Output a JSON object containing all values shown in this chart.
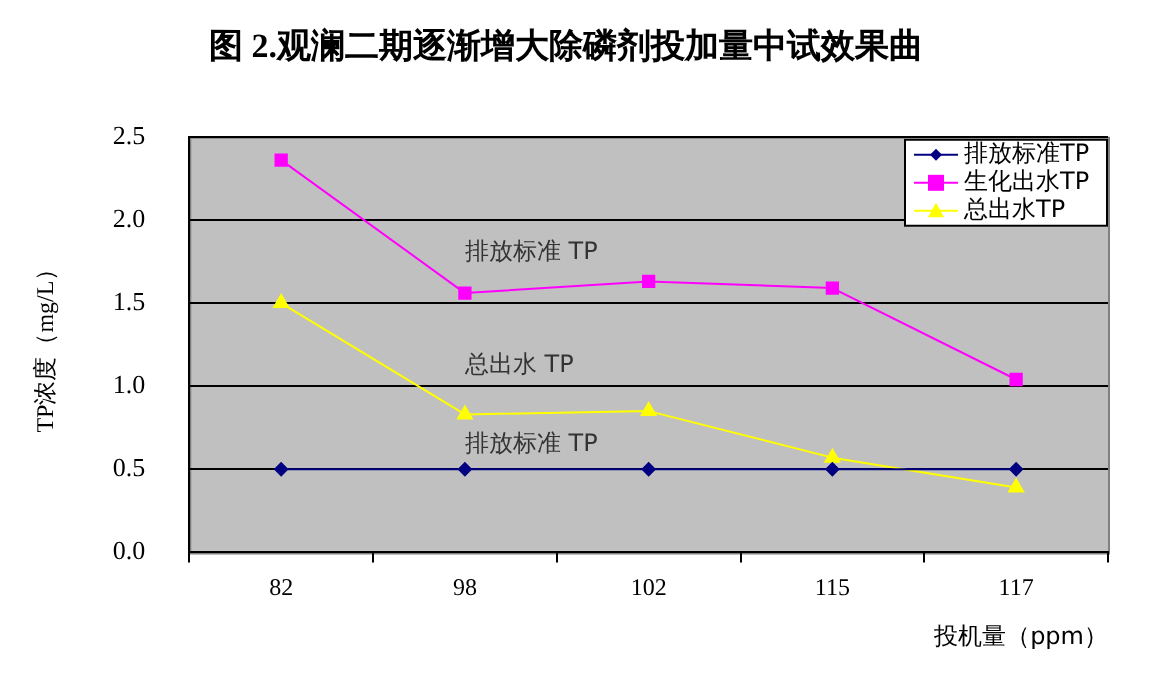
{
  "chart_data": {
    "type": "line",
    "title": "图 2.观澜二期逐渐增大除磷剂投加量中试效果曲",
    "xlabel": "投机量（ppm）",
    "ylabel": "TP浓度（mg/L）",
    "categories": [
      "82",
      "98",
      "102",
      "115",
      "117"
    ],
    "series": [
      {
        "name": "排放标准TP",
        "color": "#000080",
        "marker": "diamond",
        "values": [
          0.5,
          0.5,
          0.5,
          0.5,
          0.5
        ]
      },
      {
        "name": "生化出水TP",
        "color": "#ff00ff",
        "marker": "square",
        "values": [
          2.36,
          1.56,
          1.63,
          1.59,
          1.04
        ]
      },
      {
        "name": "总出水TP",
        "color": "#ffff00",
        "marker": "triangle",
        "values": [
          1.5,
          0.83,
          0.85,
          0.57,
          0.39
        ]
      }
    ],
    "ylim": [
      0,
      2.5
    ],
    "yticks": [
      {
        "value": 0,
        "label": "0.0"
      },
      {
        "value": 0.5,
        "label": "0.5"
      },
      {
        "value": 1,
        "label": "1.0"
      },
      {
        "value": 1.5,
        "label": "1.5"
      },
      {
        "value": 2,
        "label": "2.0"
      },
      {
        "value": 2.5,
        "label": "2.5"
      }
    ],
    "grid": "y",
    "legend": "top right",
    "annotations": [
      "排放标准 TP",
      "总出水 TP",
      "排放标准 TP"
    ]
  }
}
